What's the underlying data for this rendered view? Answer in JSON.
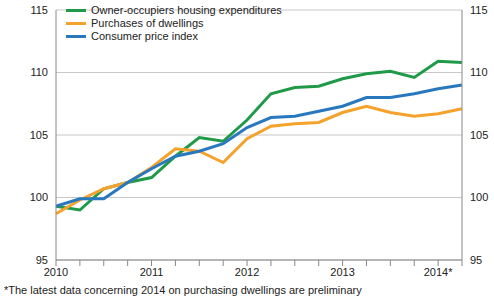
{
  "chart_data": {
    "type": "line",
    "categories": [
      "2010",
      null,
      null,
      null,
      "2011",
      null,
      null,
      null,
      "2012",
      null,
      null,
      null,
      "2013",
      null,
      null,
      null,
      "2014*",
      null
    ],
    "series": [
      {
        "name": "Owner-occupiers housing expenditures",
        "color": "#1f9a48",
        "values": [
          99.3,
          99.0,
          100.7,
          101.2,
          101.6,
          103.3,
          104.8,
          104.5,
          106.2,
          108.3,
          108.8,
          108.9,
          109.5,
          109.9,
          110.1,
          109.6,
          110.9,
          110.8
        ]
      },
      {
        "name": "Purchases of dwellings",
        "color": "#f5a22d",
        "values": [
          98.7,
          99.8,
          100.7,
          101.2,
          102.4,
          103.9,
          103.7,
          102.8,
          104.7,
          105.7,
          105.9,
          106.0,
          106.8,
          107.3,
          106.8,
          106.5,
          106.7,
          107.1
        ]
      },
      {
        "name": "Consumer price index",
        "color": "#2878bd",
        "values": [
          99.3,
          99.9,
          99.9,
          101.2,
          102.3,
          103.3,
          103.7,
          104.3,
          105.6,
          106.4,
          106.5,
          106.9,
          107.3,
          108.0,
          108.0,
          108.3,
          108.7,
          109.0
        ]
      }
    ],
    "ylim": [
      95,
      115
    ],
    "yticks": [
      95,
      100,
      105,
      110,
      115
    ],
    "y2lim": [
      95,
      115
    ],
    "y2ticks": [
      95,
      100,
      105,
      110,
      115
    ],
    "grid": true,
    "legend": "upper left",
    "annotations": [
      "*The latest data concerning 2014 on purchasing dwellings are preliminary"
    ]
  }
}
